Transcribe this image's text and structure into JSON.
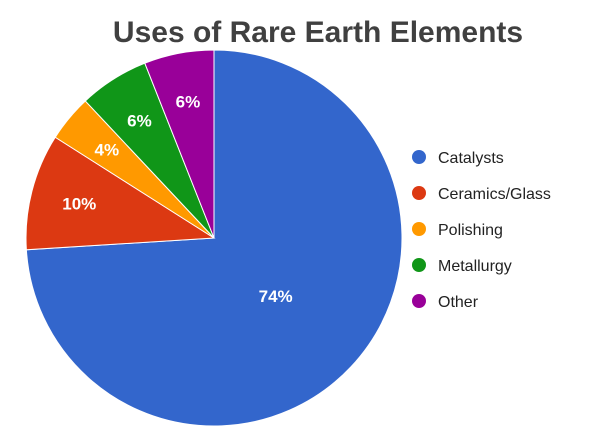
{
  "chart_data": {
    "type": "pie",
    "title": "Uses of Rare Earth Elements",
    "categories": [
      "Catalysts",
      "Ceramics/Glass",
      "Polishing",
      "Metallurgy",
      "Other"
    ],
    "values": [
      74,
      10,
      4,
      6,
      6
    ],
    "labels": [
      "74%",
      "10%",
      "4%",
      "6%",
      "6%"
    ],
    "colors": [
      "#3366CC",
      "#DC3912",
      "#FF9900",
      "#109618",
      "#990099"
    ],
    "legend_position": "right",
    "start_angle": "12 o'clock, clockwise"
  }
}
